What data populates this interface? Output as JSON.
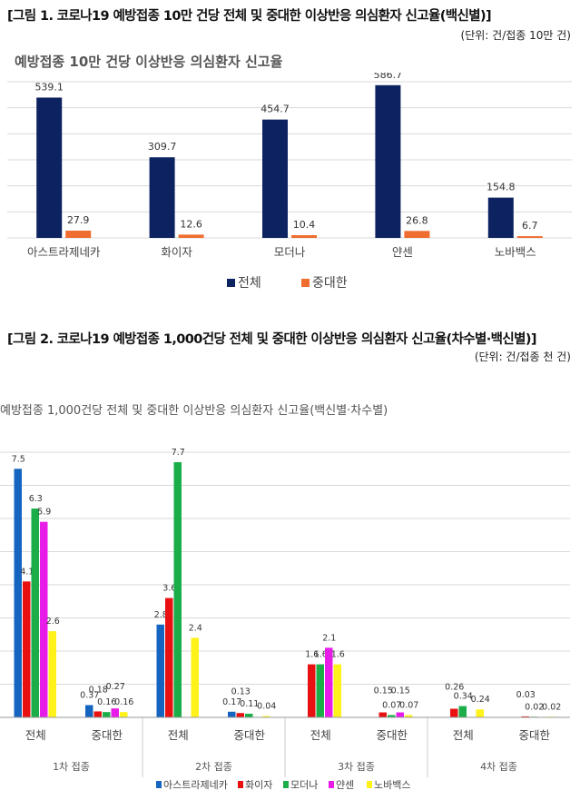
{
  "figure1": {
    "caption": "[그림 1. 코로나19 예방접종 10만 건당 전체 및 중대한 이상반응 의심환자 신고율(백신별)]",
    "unit": "(단위: 건/접종 10만 건)"
  },
  "figure2": {
    "caption": "[그림 2. 코로나19 예방접종 1,000건당 전체 및 중대한 이상반응 의심환자 신고율(차수별·백신별)]",
    "unit": "(단위: 건/접종 천 건)"
  },
  "colors": {
    "total": "#0d2260",
    "serious": "#ef6d2f",
    "az": "#1565c0",
    "pfizer": "#e81010",
    "moderna": "#1aad48",
    "janssen": "#e81ce8",
    "novavax": "#fff21a"
  },
  "chart_data": [
    {
      "type": "bar",
      "title": "예방접종 10만 건당 이상반응 의심환자 신고율",
      "categories": [
        "아스트라제네카",
        "화이자",
        "모더나",
        "얀센",
        "노바백스"
      ],
      "series": [
        {
          "name": "전체",
          "values": [
            539.1,
            309.7,
            454.7,
            586.7,
            154.8
          ]
        },
        {
          "name": "중대한",
          "values": [
            27.9,
            12.6,
            10.4,
            26.8,
            6.7
          ]
        }
      ],
      "value_labels": {
        "전체": [
          "539.1",
          "309.7",
          "454.7",
          "586.7",
          "154.8"
        ],
        "중대한": [
          "27.9",
          "12.6",
          "10.4",
          "26.8",
          "6.7"
        ]
      },
      "ylim": [
        0,
        600
      ],
      "grid": true,
      "legend": "bottom"
    },
    {
      "type": "bar",
      "title": "예방접종 1,000건당 전체 및 중대한 이상반응 의심환자 신고율(백신별·차수별)",
      "groups": [
        "1차 접종",
        "2차 접종",
        "3차 접종",
        "4차 접종"
      ],
      "subcategories": [
        "전체",
        "중대한"
      ],
      "series": [
        {
          "name": "아스트라제네카",
          "values": [
            7.5,
            0.37,
            2.8,
            0.17,
            null,
            null,
            null,
            null
          ]
        },
        {
          "name": "화이자",
          "values": [
            4.1,
            0.18,
            3.6,
            0.13,
            1.6,
            0.15,
            0.26,
            0.03
          ]
        },
        {
          "name": "모더나",
          "values": [
            6.3,
            0.16,
            7.7,
            0.11,
            1.6,
            0.07,
            0.34,
            0.02
          ]
        },
        {
          "name": "얀센",
          "values": [
            5.9,
            0.27,
            null,
            null,
            2.1,
            0.15,
            null,
            null
          ]
        },
        {
          "name": "노바백스",
          "values": [
            2.6,
            0.16,
            2.4,
            0.04,
            1.6,
            0.07,
            0.24,
            0.02
          ]
        }
      ],
      "value_labels": {
        "아스트라제네카": [
          "7.5",
          "0.37",
          "2.8",
          "0.17",
          null,
          null,
          null,
          null
        ],
        "화이자": [
          "4.1",
          "0.18",
          "3.6",
          "0.13",
          "1.6",
          "0.15",
          "0.26",
          "0.03"
        ],
        "모더나": [
          "6.3",
          "0.16",
          "7.7",
          "0.11",
          "1.6",
          "0.07",
          "0.34",
          "0.02"
        ],
        "얀센": [
          "5.9",
          "0.27",
          null,
          null,
          "2.1",
          "0.15",
          null,
          null
        ],
        "노바백스": [
          "2.6",
          "0.16",
          "2.4",
          "0.04",
          "1.6",
          "0.07",
          "0.24",
          "0.02"
        ]
      },
      "ylim": [
        0,
        8
      ],
      "grid": true,
      "legend": "bottom"
    }
  ]
}
